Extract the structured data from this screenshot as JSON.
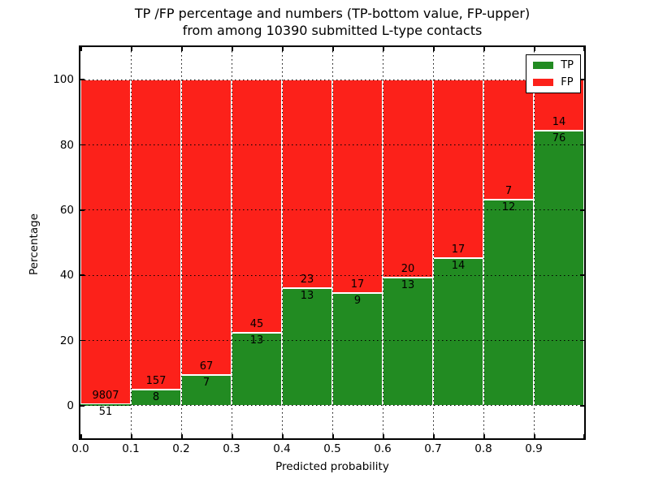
{
  "chart_data": {
    "type": "bar",
    "stacked": true,
    "normalized": "percent",
    "title": "TP /FP percentage and numbers (TP-bottom value, FP-upper)\nfrom among 10390 submitted L-type contacts",
    "title_lines": [
      "TP /FP percentage and numbers (TP-bottom value, FP-upper)",
      "from among 10390 submitted L-type contacts"
    ],
    "xlabel": "Predicted probability",
    "ylabel": "Percentage",
    "total_contacts": 10390,
    "categories": [
      "0.0-0.1",
      "0.1-0.2",
      "0.2-0.3",
      "0.3-0.4",
      "0.4-0.5",
      "0.5-0.6",
      "0.6-0.7",
      "0.7-0.8",
      "0.8-0.9",
      "0.9-1.0"
    ],
    "bin_edges": [
      0.0,
      0.1,
      0.2,
      0.3,
      0.4,
      0.5,
      0.6,
      0.7,
      0.8,
      0.9,
      1.0
    ],
    "series": [
      {
        "name": "TP",
        "color": "#228b22",
        "counts": [
          51,
          8,
          7,
          13,
          13,
          9,
          13,
          14,
          12,
          76
        ]
      },
      {
        "name": "FP",
        "color": "#fc211a",
        "counts": [
          9807,
          157,
          67,
          45,
          23,
          17,
          20,
          17,
          7,
          14
        ]
      }
    ],
    "x_tick_labels": [
      "0.0",
      "0.1",
      "0.2",
      "0.3",
      "0.4",
      "0.5",
      "0.6",
      "0.7",
      "0.8",
      "0.9"
    ],
    "y_ticks": [
      0,
      20,
      40,
      60,
      80,
      100
    ],
    "xlim": [
      0.0,
      1.0
    ],
    "ylim": [
      -10,
      110
    ],
    "grid": true,
    "grid_style": "dotted",
    "bar_edge_color": "#ffffff",
    "legend_position": "upper right",
    "legend": [
      "TP",
      "FP"
    ]
  }
}
